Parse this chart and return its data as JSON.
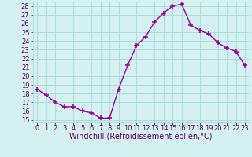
{
  "x": [
    0,
    1,
    2,
    3,
    4,
    5,
    6,
    7,
    8,
    9,
    10,
    11,
    12,
    13,
    14,
    15,
    16,
    17,
    18,
    19,
    20,
    21,
    22,
    23
  ],
  "y": [
    18.5,
    17.8,
    17.0,
    16.5,
    16.5,
    16.0,
    15.8,
    15.2,
    15.2,
    18.5,
    21.2,
    23.5,
    24.5,
    26.2,
    27.2,
    28.0,
    28.2,
    25.8,
    25.2,
    24.8,
    23.8,
    23.2,
    22.8,
    21.2
  ],
  "line_color": "#990099",
  "marker": "+",
  "marker_size": 5,
  "marker_linewidth": 1.2,
  "line_width": 1.0,
  "bg_color": "#d4f0f0",
  "grid_color": "#aadddd",
  "xlabel": "Windchill (Refroidissement éolien,°C)",
  "xlabel_color": "#660066",
  "xlabel_fontsize": 7,
  "tick_color": "#660066",
  "tick_fontsize": 6,
  "ytick_min": 15,
  "ytick_max": 28,
  "ytick_step": 1,
  "xtick_labels": [
    "0",
    "1",
    "2",
    "3",
    "4",
    "5",
    "6",
    "7",
    "8",
    "9",
    "10",
    "11",
    "12",
    "13",
    "14",
    "15",
    "16",
    "17",
    "18",
    "19",
    "20",
    "21",
    "22",
    "23"
  ],
  "xlim": [
    -0.5,
    23.5
  ],
  "ylim": [
    14.7,
    28.5
  ]
}
